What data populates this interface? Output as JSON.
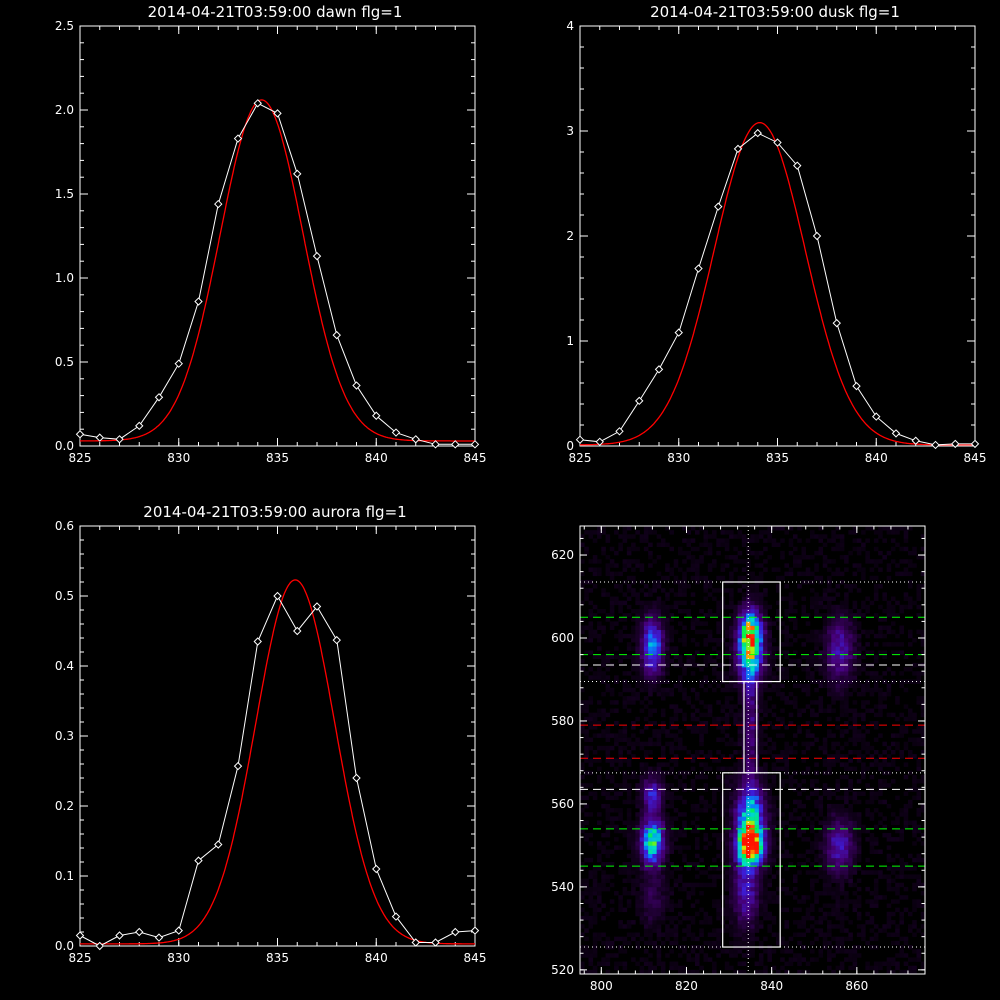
{
  "chart_data": [
    {
      "type": "line",
      "title": "2014-04-21T03:59:00 dawn flg=1",
      "xlim": [
        825,
        845
      ],
      "ylim": [
        0,
        2.5
      ],
      "xticks": [
        "825",
        "830",
        "835",
        "840",
        "845"
      ],
      "yticks": [
        "0.0",
        "0.5",
        "1.0",
        "1.5",
        "2.0",
        "2.5"
      ],
      "colors": {
        "measured": "#ffffff",
        "fit": "#ff0000"
      },
      "series": [
        {
          "role": "measured",
          "x": [
            825,
            826,
            827,
            828,
            829,
            830,
            831,
            832,
            833,
            834,
            835,
            836,
            837,
            838,
            839,
            840,
            841,
            842,
            843,
            844,
            845
          ],
          "values": [
            0.07,
            0.05,
            0.04,
            0.12,
            0.29,
            0.49,
            0.86,
            1.44,
            1.83,
            2.04,
            1.98,
            1.62,
            1.13,
            0.66,
            0.36,
            0.18,
            0.08,
            0.04,
            0.01,
            0.01,
            0.01
          ]
        },
        {
          "role": "fit",
          "fit": {
            "amplitude": 2.03,
            "center": 834.2,
            "sigma": 2.1,
            "offset": 0.03
          }
        }
      ]
    },
    {
      "type": "line",
      "title": "2014-04-21T03:59:00 dusk flg=1",
      "xlim": [
        825,
        845
      ],
      "ylim": [
        0,
        4
      ],
      "xticks": [
        "825",
        "830",
        "835",
        "840",
        "845"
      ],
      "yticks": [
        "0",
        "1",
        "2",
        "3",
        "4"
      ],
      "colors": {
        "measured": "#ffffff",
        "fit": "#ff0000"
      },
      "series": [
        {
          "role": "measured",
          "x": [
            825,
            826,
            827,
            828,
            829,
            830,
            831,
            832,
            833,
            834,
            835,
            836,
            837,
            838,
            839,
            840,
            841,
            842,
            843,
            844,
            845
          ],
          "values": [
            0.06,
            0.04,
            0.14,
            0.43,
            0.73,
            1.08,
            1.69,
            2.28,
            2.83,
            2.98,
            2.89,
            2.67,
            2.0,
            1.17,
            0.57,
            0.28,
            0.12,
            0.05,
            0.01,
            0.02,
            0.02
          ]
        },
        {
          "role": "fit",
          "fit": {
            "amplitude": 3.07,
            "center": 834.1,
            "sigma": 2.3,
            "offset": 0.01
          }
        }
      ]
    },
    {
      "type": "line",
      "title": "2014-04-21T03:59:00 aurora flg=1",
      "xlim": [
        825,
        845
      ],
      "ylim": [
        0,
        0.6
      ],
      "xticks": [
        "825",
        "830",
        "835",
        "840",
        "845"
      ],
      "yticks": [
        "0.0",
        "0.1",
        "0.2",
        "0.3",
        "0.4",
        "0.5",
        "0.6"
      ],
      "colors": {
        "measured": "#ffffff",
        "fit": "#ff0000"
      },
      "series": [
        {
          "role": "measured",
          "x": [
            825,
            826,
            827,
            828,
            829,
            830,
            831,
            832,
            833,
            834,
            835,
            836,
            837,
            838,
            839,
            840,
            841,
            842,
            843,
            844,
            845
          ],
          "values": [
            0.015,
            0.0,
            0.015,
            0.02,
            0.012,
            0.022,
            0.122,
            0.145,
            0.257,
            0.435,
            0.5,
            0.45,
            0.485,
            0.437,
            0.24,
            0.11,
            0.042,
            0.005,
            0.005,
            0.02,
            0.022
          ]
        },
        {
          "role": "fit",
          "fit": {
            "amplitude": 0.52,
            "center": 835.9,
            "sigma": 2.0,
            "offset": 0.003
          }
        }
      ]
    },
    {
      "type": "heatmap",
      "title": "",
      "xlim": [
        795,
        876
      ],
      "ylim": [
        519,
        627
      ],
      "xticks": [
        "800",
        "820",
        "840",
        "860"
      ],
      "yticks": [
        "520",
        "540",
        "560",
        "580",
        "600",
        "620"
      ],
      "blobs": [
        {
          "x": 812,
          "y": 598,
          "sx": 1.7,
          "sy": 4.5,
          "amp": 0.5
        },
        {
          "x": 812,
          "y": 551,
          "sx": 1.8,
          "sy": 3.5,
          "amp": 0.68
        },
        {
          "x": 812,
          "y": 562,
          "sx": 1.5,
          "sy": 3.0,
          "amp": 0.35
        },
        {
          "x": 835,
          "y": 601,
          "sx": 1.8,
          "sy": 3.8,
          "amp": 0.85
        },
        {
          "x": 835,
          "y": 594,
          "sx": 2.0,
          "sy": 4.0,
          "amp": 0.45
        },
        {
          "x": 835,
          "y": 550,
          "sx": 2.0,
          "sy": 3.0,
          "amp": 1.0
        },
        {
          "x": 835,
          "y": 557,
          "sx": 2.2,
          "sy": 5.0,
          "amp": 0.6
        },
        {
          "x": 835,
          "y": 578,
          "sx": 1.2,
          "sy": 10.0,
          "amp": 0.2
        },
        {
          "x": 856,
          "y": 597,
          "sx": 2.2,
          "sy": 5.0,
          "amp": 0.28
        },
        {
          "x": 856,
          "y": 550,
          "sx": 2.2,
          "sy": 4.5,
          "amp": 0.3
        },
        {
          "x": 834,
          "y": 540,
          "sx": 2.0,
          "sy": 6.0,
          "amp": 0.3
        },
        {
          "x": 812,
          "y": 538,
          "sx": 2.0,
          "sy": 5.0,
          "amp": 0.12
        }
      ],
      "boxes": [
        {
          "x0": 828.5,
          "x1": 842,
          "y0": 589.5,
          "y1": 613.5
        },
        {
          "x0": 828.5,
          "x1": 842,
          "y0": 525.5,
          "y1": 567.5
        },
        {
          "x0": 833.5,
          "x1": 836.5,
          "y0": 567.5,
          "y1": 589.5
        }
      ],
      "vline": 834.5,
      "hlines_dotted": [
        613.5,
        589.5,
        567.5,
        525.5
      ],
      "hlines_dashed": [
        {
          "y": 605,
          "color": "#00ff00"
        },
        {
          "y": 596,
          "color": "#00ff00"
        },
        {
          "y": 593.5,
          "color": "#ffffff"
        },
        {
          "y": 579,
          "color": "#ff0000"
        },
        {
          "y": 571,
          "color": "#ff0000"
        },
        {
          "y": 563.5,
          "color": "#ffffff"
        },
        {
          "y": 554,
          "color": "#00ff00"
        },
        {
          "y": 545,
          "color": "#00ff00"
        }
      ]
    }
  ]
}
